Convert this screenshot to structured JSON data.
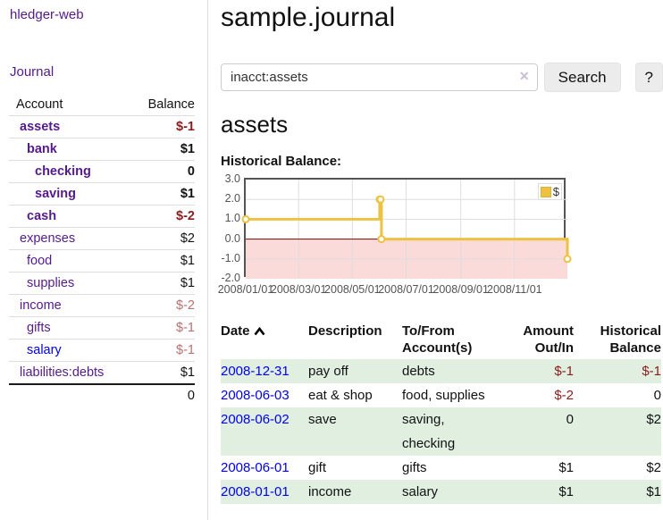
{
  "sidebar": {
    "brand": "hledger-web",
    "journal_label": "Journal",
    "accounts_header": {
      "account": "Account",
      "balance": "Balance"
    },
    "accounts": [
      {
        "name": "assets",
        "indent": 0,
        "bold": true,
        "balance": "$-1",
        "balance_class": "neg"
      },
      {
        "name": "bank",
        "indent": 1,
        "bold": true,
        "balance": "$1",
        "balance_class": ""
      },
      {
        "name": "checking",
        "indent": 2,
        "bold": true,
        "balance": "0",
        "balance_class": ""
      },
      {
        "name": "saving",
        "indent": 2,
        "bold": true,
        "balance": "$1",
        "balance_class": ""
      },
      {
        "name": "cash",
        "indent": 1,
        "bold": true,
        "balance": "$-2",
        "balance_class": "neg"
      },
      {
        "name": "expenses",
        "indent": 0,
        "bold": false,
        "balance": "$2",
        "balance_class": ""
      },
      {
        "name": "food",
        "indent": 1,
        "bold": false,
        "balance": "$1",
        "balance_class": ""
      },
      {
        "name": "supplies",
        "indent": 1,
        "bold": false,
        "balance": "$1",
        "balance_class": ""
      },
      {
        "name": "income",
        "indent": 0,
        "bold": false,
        "balance": "$-2",
        "balance_class": "neg-muted"
      },
      {
        "name": "gifts",
        "indent": 1,
        "bold": false,
        "balance": "$-1",
        "balance_class": "neg-muted"
      },
      {
        "name": "salary",
        "indent": 1,
        "bold": false,
        "name_class": "unvisited",
        "balance": "$-1",
        "balance_class": "neg-muted"
      },
      {
        "name": "liabilities:debts",
        "indent": 0,
        "bold": false,
        "balance": "$1",
        "balance_class": ""
      }
    ],
    "total": "0"
  },
  "main": {
    "title": "sample.journal",
    "search": {
      "value": "inacct:assets",
      "clear_icon": "✕",
      "button_label": "Search",
      "help_label": "?"
    },
    "account_heading": "assets",
    "chart_title": "Historical Balance:"
  },
  "chart_data": {
    "type": "line",
    "step": true,
    "title": "Historical Balance:",
    "series": [
      {
        "name": "$",
        "color": "#edc240",
        "points": [
          [
            "2008-01-01",
            1
          ],
          [
            "2008-06-01",
            2
          ],
          [
            "2008-06-02",
            2
          ],
          [
            "2008-06-03",
            0
          ],
          [
            "2008-12-31",
            -1
          ]
        ]
      }
    ],
    "x_range": [
      "2008-01-01",
      "2008-12-31"
    ],
    "x_ticks": [
      {
        "date": "2008-01-01",
        "label": "2008/01/01"
      },
      {
        "date": "2008-03-01",
        "label": "2008/03/01"
      },
      {
        "date": "2008-05-01",
        "label": "2008/05/01"
      },
      {
        "date": "2008-07-01",
        "label": "2008/07/01"
      },
      {
        "date": "2008-09-01",
        "label": "2008/09/01"
      },
      {
        "date": "2008-11-01",
        "label": "2008/11/01"
      }
    ],
    "y_ticks": [
      {
        "v": 3,
        "label": "3.0"
      },
      {
        "v": 2,
        "label": "2.0"
      },
      {
        "v": 1,
        "label": "1.0"
      },
      {
        "v": 0,
        "label": "0.0"
      },
      {
        "v": -1,
        "label": "-1.0"
      },
      {
        "v": -2,
        "label": "-2.0"
      }
    ],
    "ylim": [
      -2,
      3
    ],
    "grid": true,
    "legend_position": "top-right",
    "colors": {
      "zero_line": "#8b0000",
      "negative_region": "#fbdada",
      "grid": "#dedede",
      "border": "#545454",
      "tick_text": "#545454"
    }
  },
  "register": {
    "headers": {
      "date": "Date",
      "description": "Description",
      "accounts": "To/From Account(s)",
      "amount": "Amount Out/In",
      "balance": "Historical Balance"
    },
    "rows": [
      {
        "date": "2008-12-31",
        "description": "pay off",
        "accounts": "debts",
        "amount": "$-1",
        "amount_neg": true,
        "balance": "$-1",
        "balance_neg": true
      },
      {
        "date": "2008-06-03",
        "description": "eat & shop",
        "accounts": "food, supplies",
        "amount": "$-2",
        "amount_neg": true,
        "balance": "0",
        "balance_neg": false
      },
      {
        "date": "2008-06-02",
        "description": "save",
        "accounts": "saving,\nchecking",
        "amount": "0",
        "amount_neg": false,
        "balance": "$2",
        "balance_neg": false
      },
      {
        "date": "2008-06-01",
        "description": "gift",
        "accounts": "gifts",
        "amount": "$1",
        "amount_neg": false,
        "balance": "$2",
        "balance_neg": false
      },
      {
        "date": "2008-01-01",
        "description": "income",
        "accounts": "salary",
        "amount": "$1",
        "amount_neg": false,
        "balance": "$1",
        "balance_neg": false
      }
    ]
  },
  "colors": {
    "link_purple": "#551a8b",
    "link_blue": "#0000ee",
    "negative": "#8b1c1c",
    "negative_muted": "#b86f6f",
    "row_green": "#e1efe1",
    "accent_gold": "#edc240"
  }
}
